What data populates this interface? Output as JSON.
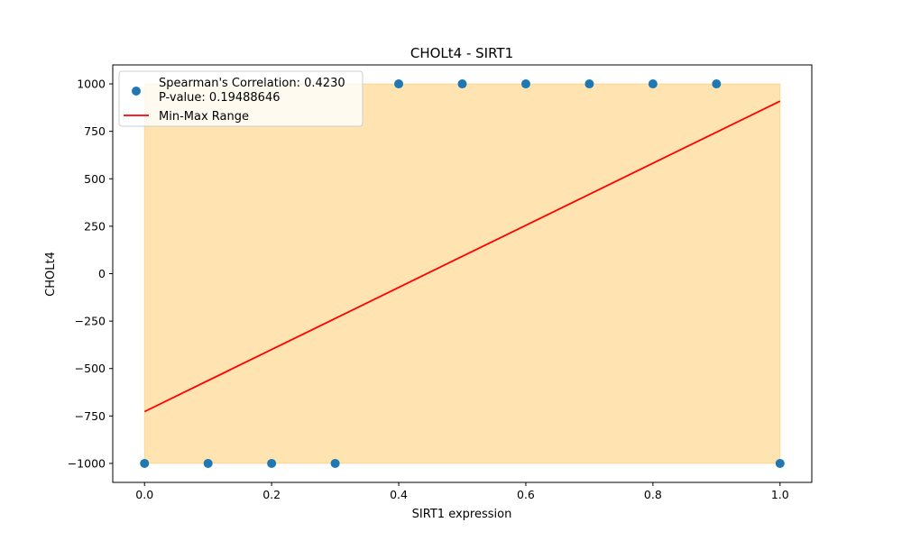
{
  "chart_data": {
    "type": "scatter",
    "title": "CHOLt4 - SIRT1",
    "xlabel": "SIRT1 expression",
    "ylabel": "CHOLt4",
    "xlim": [
      -0.05,
      1.05
    ],
    "ylim": [
      -1100,
      1100
    ],
    "x_ticks": [
      0.0,
      0.2,
      0.4,
      0.6,
      0.8,
      1.0
    ],
    "x_tick_labels": [
      "0.0",
      "0.2",
      "0.4",
      "0.6",
      "0.8",
      "1.0"
    ],
    "y_ticks": [
      1000,
      750,
      500,
      250,
      0,
      -250,
      -500,
      -750,
      -1000
    ],
    "y_tick_labels": [
      "1000",
      "750",
      "500",
      "250",
      "0",
      "−250",
      "−500",
      "−750",
      "−1000"
    ],
    "grid": false,
    "legend_position": "top-left",
    "points": {
      "label_lines": [
        "Spearman's Correlation: 0.4230",
        "P-value: 0.19488646"
      ],
      "color": "#1f77b4",
      "x": [
        0.0,
        0.1,
        0.2,
        0.3,
        0.4,
        0.5,
        0.6,
        0.7,
        0.8,
        0.9,
        1.0
      ],
      "y": [
        -1000,
        -1000,
        -1000,
        -1000,
        1000,
        1000,
        1000,
        1000,
        1000,
        1000,
        -1000
      ]
    },
    "trend_line": {
      "name": "Min-Max Range",
      "color": "#ff0000",
      "x": [
        0.0,
        1.0
      ],
      "y": [
        -727,
        909
      ]
    },
    "range_band": {
      "color": "#ffa500",
      "opacity": 0.3,
      "x": [
        0.0,
        1.0
      ],
      "y_min": -1000,
      "y_max": 1000
    }
  }
}
